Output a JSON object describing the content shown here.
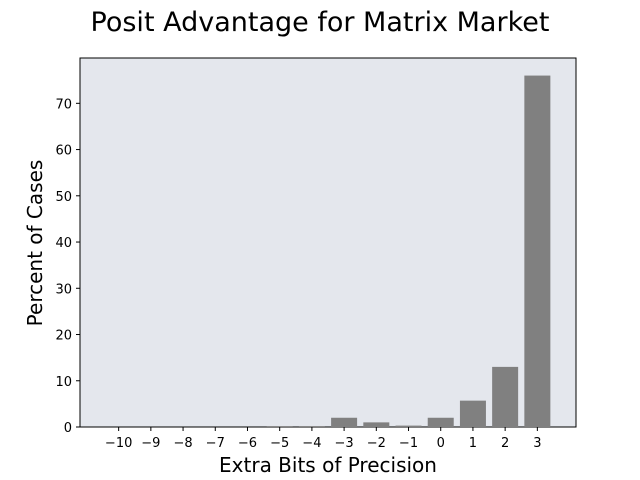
{
  "chart_data": {
    "type": "bar",
    "title": "Posit Advantage for Matrix Market",
    "xlabel": "Extra Bits of Precision",
    "ylabel": "Percent of Cases",
    "categories": [
      "−10",
      "−9",
      "−8",
      "−7",
      "−6",
      "−5",
      "−4",
      "−3",
      "−2",
      "−1",
      "0",
      "1",
      "2",
      "3"
    ],
    "x": [
      -10,
      -9,
      -8,
      -7,
      -6,
      -5,
      -4,
      -3,
      -2,
      -1,
      0,
      1,
      2,
      3
    ],
    "values": [
      0,
      0,
      0,
      0,
      0,
      0.2,
      0.2,
      2.0,
      1.0,
      0.3,
      2.0,
      5.7,
      13.0,
      76.0
    ],
    "xlim": [
      -11.2,
      4.2
    ],
    "ylim": [
      0,
      79.8
    ],
    "yticks": [
      0,
      10,
      20,
      30,
      40,
      50,
      60,
      70
    ],
    "grid": false,
    "bar_color": "#808080",
    "plot_background": "#e4e7ed"
  }
}
